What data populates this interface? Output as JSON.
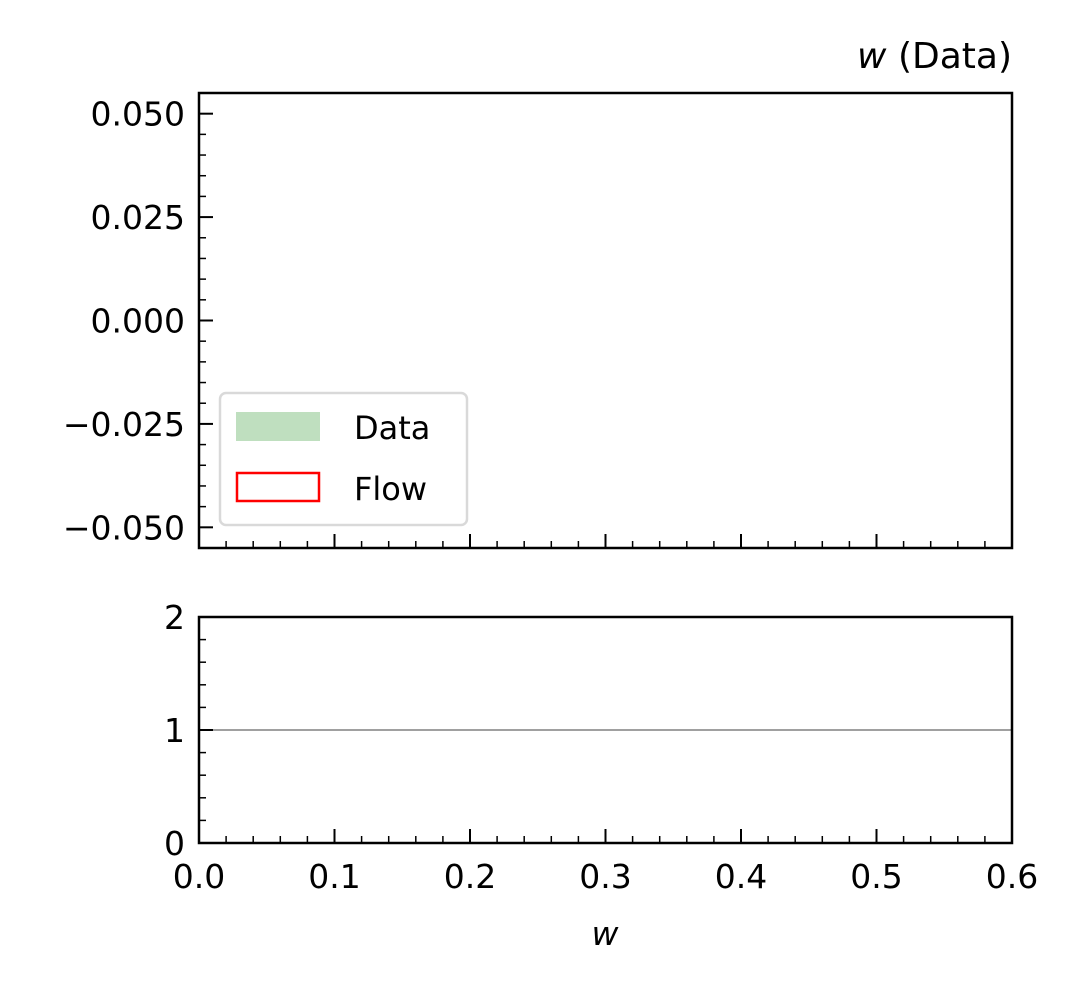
{
  "chart_data": [
    {
      "type": "line",
      "title_var": "w",
      "title_rest": " (Data)",
      "xlim": [
        0,
        0.6
      ],
      "ylim": [
        -0.055,
        0.055
      ],
      "yticks": [
        0.05,
        0.025,
        0.0,
        -0.025,
        -0.05
      ],
      "ytick_labels": [
        "0.050",
        "0.025",
        "0.000",
        "−0.025",
        "−0.050"
      ],
      "grid": false,
      "legend_placement": "lower-left",
      "legend": [
        {
          "label": "Data",
          "kind": "filled",
          "color": "#bfdfbf"
        },
        {
          "label": "Flow",
          "kind": "outline",
          "color": "#ff0000"
        }
      ],
      "series": []
    },
    {
      "type": "line",
      "xlabel": "w",
      "xlim": [
        0,
        0.6
      ],
      "ylim": [
        0,
        2
      ],
      "xticks": [
        0.0,
        0.1,
        0.2,
        0.3,
        0.4,
        0.5,
        0.6
      ],
      "xtick_labels": [
        "0.0",
        "0.1",
        "0.2",
        "0.3",
        "0.4",
        "0.5",
        "0.6"
      ],
      "yticks": [
        2,
        1,
        0
      ],
      "ytick_labels": [
        "2",
        "1",
        "0"
      ],
      "reference_line": {
        "y": 1,
        "color": "#808080"
      },
      "grid": false,
      "series": []
    }
  ]
}
